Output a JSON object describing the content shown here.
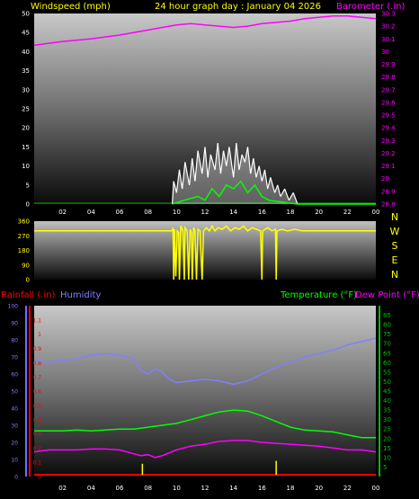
{
  "header": {
    "left_title": "Windspeed (mph)",
    "center_title": "24 hour graph day : January 04 2026",
    "right_title": "Barometer (.in)"
  },
  "x_ticks": [
    "02",
    "04",
    "06",
    "08",
    "10",
    "12",
    "14",
    "16",
    "18",
    "20",
    "22",
    "00"
  ],
  "colors": {
    "background": "#000000",
    "text_yellow": "#ffff00",
    "magenta": "#ff00ff",
    "white": "#ffffff",
    "green": "#00ff00",
    "red": "#ff0000",
    "blue_axis": "#6f6fff",
    "humidity": "#8080ff",
    "temperature": "#00c000"
  },
  "chart_data": [
    {
      "type": "line",
      "panel": "wind-barometer",
      "x_unit": "hour",
      "xlim": [
        0,
        24
      ],
      "y_left": {
        "label": "Windspeed (mph)",
        "lim": [
          0,
          50
        ],
        "ticks": [
          0,
          5,
          10,
          15,
          20,
          25,
          30,
          35,
          40,
          45,
          50
        ]
      },
      "y_right": {
        "label": "Barometer (.in)",
        "lim": [
          28.8,
          30.3
        ],
        "ticks": [
          "28.8",
          "28.9",
          "29",
          "29.1",
          "29.2",
          "29.3",
          "29.4",
          "29.5",
          "29.6",
          "29.7",
          "29.8",
          "29.9",
          "30",
          "30.1",
          "30.2",
          "30.3"
        ]
      },
      "series": [
        {
          "name": "Barometer (.in)",
          "axis": "right",
          "color": "#ff00ff",
          "points": [
            [
              0,
              30.05
            ],
            [
              2,
              30.08
            ],
            [
              4,
              30.1
            ],
            [
              6,
              30.13
            ],
            [
              8,
              30.17
            ],
            [
              9,
              30.19
            ],
            [
              10,
              30.21
            ],
            [
              11,
              30.22
            ],
            [
              12,
              30.21
            ],
            [
              13,
              30.2
            ],
            [
              14,
              30.19
            ],
            [
              15,
              30.2
            ],
            [
              16,
              30.22
            ],
            [
              17,
              30.23
            ],
            [
              18,
              30.24
            ],
            [
              19,
              30.26
            ],
            [
              20,
              30.27
            ],
            [
              21,
              30.28
            ],
            [
              22,
              30.28
            ],
            [
              23,
              30.27
            ],
            [
              24,
              30.26
            ]
          ]
        },
        {
          "name": "Wind speed",
          "axis": "left",
          "color": "#ffffff",
          "points": [
            [
              9.7,
              0
            ],
            [
              9.8,
              6
            ],
            [
              10.0,
              3
            ],
            [
              10.2,
              9
            ],
            [
              10.4,
              4
            ],
            [
              10.6,
              11
            ],
            [
              10.9,
              5
            ],
            [
              11.1,
              12
            ],
            [
              11.3,
              6
            ],
            [
              11.5,
              14
            ],
            [
              11.8,
              8
            ],
            [
              12.0,
              15
            ],
            [
              12.2,
              7
            ],
            [
              12.4,
              13
            ],
            [
              12.7,
              9
            ],
            [
              12.9,
              16
            ],
            [
              13.1,
              8
            ],
            [
              13.3,
              14
            ],
            [
              13.5,
              10
            ],
            [
              13.7,
              15
            ],
            [
              14.0,
              7
            ],
            [
              14.2,
              16
            ],
            [
              14.4,
              9
            ],
            [
              14.6,
              13
            ],
            [
              14.8,
              11
            ],
            [
              15.0,
              15
            ],
            [
              15.2,
              8
            ],
            [
              15.4,
              12
            ],
            [
              15.6,
              7
            ],
            [
              15.8,
              10
            ],
            [
              16.0,
              6
            ],
            [
              16.2,
              9
            ],
            [
              16.4,
              4
            ],
            [
              16.6,
              7
            ],
            [
              16.9,
              3
            ],
            [
              17.1,
              5
            ],
            [
              17.3,
              2
            ],
            [
              17.6,
              4
            ],
            [
              17.9,
              1
            ],
            [
              18.2,
              3
            ],
            [
              18.5,
              0
            ]
          ]
        },
        {
          "name": "Wind gust (low)",
          "axis": "left",
          "color": "#00ff00",
          "points": [
            [
              9.7,
              0
            ],
            [
              10.5,
              1
            ],
            [
              11.5,
              2
            ],
            [
              12.0,
              1
            ],
            [
              12.5,
              4
            ],
            [
              13.0,
              2
            ],
            [
              13.5,
              5
            ],
            [
              14.0,
              4
            ],
            [
              14.5,
              6
            ],
            [
              15.0,
              3
            ],
            [
              15.5,
              5
            ],
            [
              16.0,
              2
            ],
            [
              16.5,
              1
            ],
            [
              17.5,
              0.5
            ],
            [
              18.5,
              0
            ],
            [
              24,
              0
            ]
          ]
        }
      ]
    },
    {
      "type": "line",
      "panel": "wind-direction",
      "x_unit": "hour",
      "xlim": [
        0,
        24
      ],
      "y_left": {
        "lim": [
          0,
          360
        ],
        "ticks": [
          0,
          90,
          180,
          270,
          360
        ]
      },
      "compass_labels": [
        "N",
        "W",
        "S",
        "E",
        "N"
      ],
      "series": [
        {
          "name": "Wind direction",
          "color": "#ffff00",
          "points": [
            [
              0,
              300
            ],
            [
              9.6,
              300
            ],
            [
              9.7,
              300
            ],
            [
              9.75,
              320
            ],
            [
              9.8,
              0
            ],
            [
              9.85,
              310
            ],
            [
              9.95,
              20
            ],
            [
              10.05,
              300
            ],
            [
              10.15,
              290
            ],
            [
              10.2,
              0
            ],
            [
              10.3,
              330
            ],
            [
              10.45,
              300
            ],
            [
              10.55,
              0
            ],
            [
              10.6,
              320
            ],
            [
              10.75,
              300
            ],
            [
              10.85,
              0
            ],
            [
              10.95,
              310
            ],
            [
              11.05,
              290
            ],
            [
              11.1,
              0
            ],
            [
              11.2,
              320
            ],
            [
              11.3,
              300
            ],
            [
              11.4,
              0
            ],
            [
              11.5,
              310
            ],
            [
              11.65,
              300
            ],
            [
              11.8,
              0
            ],
            [
              11.9,
              300
            ],
            [
              12.1,
              320
            ],
            [
              12.3,
              300
            ],
            [
              12.5,
              330
            ],
            [
              12.7,
              300
            ],
            [
              12.9,
              320
            ],
            [
              13.2,
              310
            ],
            [
              13.5,
              330
            ],
            [
              13.8,
              300
            ],
            [
              14.1,
              320
            ],
            [
              14.4,
              310
            ],
            [
              14.7,
              330
            ],
            [
              15.0,
              300
            ],
            [
              15.3,
              320
            ],
            [
              15.6,
              310
            ],
            [
              15.9,
              300
            ],
            [
              16.0,
              0
            ],
            [
              16.05,
              300
            ],
            [
              16.4,
              320
            ],
            [
              16.7,
              300
            ],
            [
              16.95,
              310
            ],
            [
              17.0,
              0
            ],
            [
              17.05,
              300
            ],
            [
              17.4,
              310
            ],
            [
              17.8,
              300
            ],
            [
              18.3,
              310
            ],
            [
              18.8,
              300
            ],
            [
              24,
              300
            ]
          ]
        }
      ]
    },
    {
      "type": "line",
      "panel": "rain-humidity-temperature",
      "x_unit": "hour",
      "xlim": [
        0,
        24
      ],
      "y_humidity": {
        "label": "Humidity",
        "lim": [
          0,
          100
        ],
        "ticks": [
          0,
          10,
          20,
          30,
          40,
          50,
          60,
          70,
          80,
          90,
          100
        ]
      },
      "y_rain": {
        "label": "Rainfall (.in)",
        "lim": [
          0,
          1.2
        ],
        "ticks": [
          "0",
          "0.1",
          "0.2",
          "0.3",
          "0.4",
          "0.5",
          "0.6",
          "0.7",
          "0.8",
          "0.9",
          "1",
          "1.1"
        ]
      },
      "y_temp": {
        "label": "Temperature (°F) Dew Point (°F)",
        "lim": [
          0,
          90
        ],
        "ticks": [
          5,
          10,
          15,
          20,
          25,
          30,
          35,
          40,
          45,
          50,
          55,
          60,
          65,
          70,
          75,
          80,
          85
        ]
      },
      "series": [
        {
          "name": "Humidity",
          "axis": "humidity",
          "color": "#8080ff",
          "points": [
            [
              0,
              68
            ],
            [
              1,
              67
            ],
            [
              2,
              68
            ],
            [
              3,
              69
            ],
            [
              4,
              71
            ],
            [
              5,
              72
            ],
            [
              6,
              71
            ],
            [
              7,
              69
            ],
            [
              7.5,
              62
            ],
            [
              8,
              60
            ],
            [
              8.5,
              63
            ],
            [
              9,
              61
            ],
            [
              9.5,
              57
            ],
            [
              10,
              55
            ],
            [
              11,
              56
            ],
            [
              12,
              57
            ],
            [
              13,
              56
            ],
            [
              14,
              54
            ],
            [
              15,
              56
            ],
            [
              16,
              60
            ],
            [
              17,
              64
            ],
            [
              18,
              67
            ],
            [
              19,
              70
            ],
            [
              20,
              72
            ],
            [
              21,
              74
            ],
            [
              22,
              77
            ],
            [
              23,
              79
            ],
            [
              24,
              81
            ]
          ]
        },
        {
          "name": "Temperature (°F)",
          "axis": "temp",
          "color": "#00ff00",
          "points": [
            [
              0,
              24
            ],
            [
              1,
              24
            ],
            [
              2,
              24
            ],
            [
              3,
              24.5
            ],
            [
              4,
              24
            ],
            [
              5,
              24.5
            ],
            [
              6,
              25
            ],
            [
              7,
              25
            ],
            [
              8,
              26
            ],
            [
              9,
              27
            ],
            [
              10,
              28
            ],
            [
              11,
              30
            ],
            [
              12,
              32
            ],
            [
              13,
              34
            ],
            [
              14,
              35
            ],
            [
              15,
              34.5
            ],
            [
              16,
              32
            ],
            [
              17,
              29
            ],
            [
              18,
              26
            ],
            [
              19,
              24.5
            ],
            [
              20,
              24
            ],
            [
              21,
              23.5
            ],
            [
              22,
              22
            ],
            [
              23,
              20.5
            ],
            [
              24,
              20.5
            ]
          ]
        },
        {
          "name": "Dew Point (°F)",
          "axis": "temp",
          "color": "#ff00ff",
          "points": [
            [
              0,
              13
            ],
            [
              1,
              14
            ],
            [
              2,
              14
            ],
            [
              3,
              14
            ],
            [
              4,
              14.5
            ],
            [
              5,
              14.5
            ],
            [
              6,
              14
            ],
            [
              7,
              12
            ],
            [
              7.5,
              11
            ],
            [
              8,
              11.5
            ],
            [
              8.5,
              10
            ],
            [
              9,
              11
            ],
            [
              10,
              14
            ],
            [
              11,
              16
            ],
            [
              12,
              17
            ],
            [
              13,
              18.5
            ],
            [
              14,
              19
            ],
            [
              15,
              19
            ],
            [
              16,
              18
            ],
            [
              17,
              17.5
            ],
            [
              18,
              17
            ],
            [
              19,
              16.5
            ],
            [
              20,
              16
            ],
            [
              21,
              15
            ],
            [
              22,
              14
            ],
            [
              23,
              14
            ],
            [
              24,
              13
            ]
          ]
        },
        {
          "name": "Rain rate",
          "axis": "rain",
          "color": "#ffff00",
          "bars": [
            [
              7.6,
              0.09
            ],
            [
              17.0,
              0.11
            ]
          ]
        }
      ]
    }
  ],
  "bottom_labels": {
    "rainfall": "Rainfall (.in)",
    "humidity": "Humidity",
    "temperature": "Temperature (°F)",
    "dewpoint": "Dew Point (°F)"
  }
}
